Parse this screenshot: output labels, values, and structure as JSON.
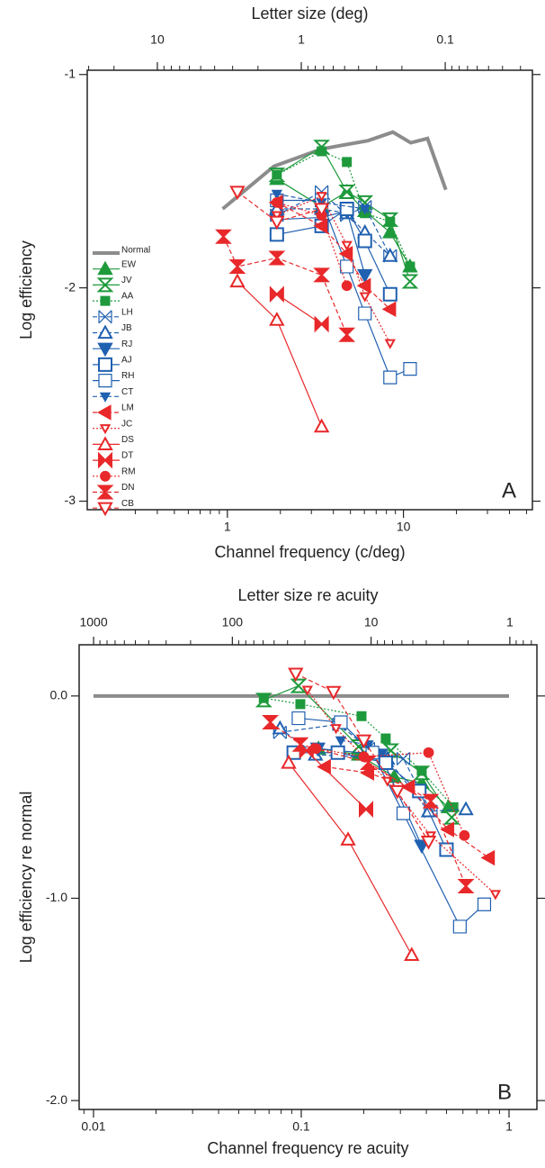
{
  "chart_data": [
    {
      "type": "line",
      "panel_label": "A",
      "x2label": "Letter size (deg)",
      "xlabel": "Channel frequency (c/deg)",
      "ylabel": "Log efficiency",
      "xscale": "log",
      "x2scale": "log",
      "xlim": [
        0.16,
        54
      ],
      "xticks": [
        1,
        10
      ],
      "x2lim": [
        30.7,
        0.0248
      ],
      "x2ticks": [
        10,
        1,
        0.1
      ],
      "ylim": [
        -3.04,
        -0.98
      ],
      "yticks": [
        -1,
        -2,
        -3
      ],
      "legend": "left",
      "series": [
        {
          "name": "Normal",
          "color": "#8c8c8c",
          "marker": "none",
          "filled": false,
          "line_style": "solid",
          "x": [
            0.94,
            1.84,
            3.4,
            4.6,
            6.3,
            8.7,
            11.0,
            13.7,
            17.4
          ],
          "values": [
            -1.63,
            -1.43,
            -1.35,
            -1.33,
            -1.31,
            -1.27,
            -1.32,
            -1.3,
            -1.54
          ]
        },
        {
          "name": "EW",
          "color": "#1e9a3c",
          "marker": "triangle-up",
          "filled": true,
          "line_style": "solid",
          "x": [
            1.91,
            3.43,
            4.77,
            6.04,
            8.4,
            10.9
          ],
          "values": [
            -1.49,
            -1.62,
            -1.55,
            -1.64,
            -1.74,
            -1.9
          ]
        },
        {
          "name": "JV",
          "color": "#1e9a3c",
          "marker": "hourglass",
          "filled": false,
          "line_style": "solid",
          "x": [
            1.91,
            3.43,
            4.77,
            6.04,
            8.4,
            10.9
          ],
          "values": [
            -1.47,
            -1.34,
            -1.55,
            -1.6,
            -1.68,
            -1.97
          ]
        },
        {
          "name": "AA",
          "color": "#1e9a3c",
          "marker": "square-small",
          "filled": true,
          "line_style": "dotted",
          "x": [
            1.91,
            3.43,
            4.77,
            6.04,
            8.4,
            10.9
          ],
          "values": [
            -1.47,
            -1.36,
            -1.41,
            -1.65,
            -1.69,
            -1.9
          ]
        },
        {
          "name": "LH",
          "color": "#2060b0",
          "marker": "xsquare",
          "filled": false,
          "line_style": "dashed",
          "x": [
            1.91,
            3.43,
            4.77,
            6.04,
            8.4
          ],
          "values": [
            -1.66,
            -1.55,
            -1.66,
            -1.62,
            -1.85
          ]
        },
        {
          "name": "JB",
          "color": "#2060b0",
          "marker": "triangle-up",
          "filled": false,
          "line_style": "dashed",
          "x": [
            1.91,
            3.43,
            4.77,
            6.04,
            8.4
          ],
          "values": [
            -1.63,
            -1.63,
            -1.65,
            -1.74,
            -1.85
          ]
        },
        {
          "name": "RJ",
          "color": "#2060b0",
          "marker": "triangle-down",
          "filled": true,
          "line_style": "solid",
          "x": [
            1.91,
            3.43,
            4.77,
            6.04
          ],
          "values": [
            -1.68,
            -1.67,
            -1.64,
            -1.94
          ]
        },
        {
          "name": "AJ",
          "color": "#2060b0",
          "marker": "square",
          "filled": false,
          "line_style": "solid",
          "x": [
            1.91,
            3.43,
            4.77,
            6.04,
            8.4
          ],
          "values": [
            -1.75,
            -1.71,
            -1.63,
            -1.78,
            -2.03
          ]
        },
        {
          "name": "RH",
          "color": "#2060b0",
          "marker": "square-thin",
          "filled": false,
          "line_style": "solid",
          "x": [
            1.91,
            3.43,
            4.77,
            6.04,
            8.4,
            10.9
          ],
          "values": [
            -1.59,
            -1.59,
            -1.9,
            -2.12,
            -2.42,
            -2.38
          ]
        },
        {
          "name": "CT",
          "color": "#2060b0",
          "marker": "triangle-down-small",
          "filled": true,
          "line_style": "dashed",
          "x": [
            1.91,
            3.43,
            6.04
          ],
          "values": [
            -1.56,
            -1.6,
            -1.63
          ]
        },
        {
          "name": "LM",
          "color": "#e8282a",
          "marker": "triangle-left",
          "filled": true,
          "line_style": "dashed",
          "x": [
            1.91,
            3.43,
            4.77,
            6.04,
            8.4
          ],
          "values": [
            -1.6,
            -1.71,
            -1.84,
            -1.99,
            -2.1
          ]
        },
        {
          "name": "JC",
          "color": "#e8282a",
          "marker": "triangle-down-small",
          "filled": false,
          "line_style": "dotted",
          "x": [
            1.91,
            3.43,
            4.77,
            6.04,
            8.4
          ],
          "values": [
            -1.66,
            -1.57,
            -1.8,
            -2.04,
            -2.26
          ]
        },
        {
          "name": "DS",
          "color": "#e8282a",
          "marker": "triangle-up",
          "filled": false,
          "line_style": "solid",
          "x": [
            1.14,
            1.91,
            3.43
          ],
          "values": [
            -1.97,
            -2.15,
            -2.65
          ]
        },
        {
          "name": "DT",
          "color": "#e8282a",
          "marker": "bowtie",
          "filled": true,
          "line_style": "solid",
          "x": [
            1.91,
            3.43
          ],
          "values": [
            -2.03,
            -2.17
          ]
        },
        {
          "name": "RM",
          "color": "#e8282a",
          "marker": "circle",
          "filled": true,
          "line_style": "dotted",
          "x": [
            1.91,
            3.43,
            4.77
          ],
          "values": [
            -1.6,
            -1.66,
            -1.99
          ]
        },
        {
          "name": "DN",
          "color": "#e8282a",
          "marker": "hourglass",
          "filled": true,
          "line_style": "dashed",
          "x": [
            0.95,
            1.14,
            1.91,
            3.43,
            4.77
          ],
          "values": [
            -1.76,
            -1.9,
            -1.86,
            -1.94,
            -2.22
          ]
        },
        {
          "name": "CB",
          "color": "#e8282a",
          "marker": "triangle-down",
          "filled": false,
          "line_style": "dashed",
          "x": [
            1.14,
            1.91,
            3.43
          ],
          "values": [
            -1.55,
            -1.69,
            -1.63
          ]
        }
      ]
    },
    {
      "type": "line",
      "panel_label": "B",
      "x2label": "Letter size re acuity",
      "xlabel": "Channel frequency re acuity",
      "ylabel": "Log efficiency  re normal",
      "xscale": "log",
      "x2scale": "log",
      "xlim": [
        0.00853,
        1.362
      ],
      "xticks": [
        0.01,
        0.1,
        1
      ],
      "x2lim": [
        1271,
        0.638
      ],
      "x2ticks": [
        1000,
        100,
        10,
        1
      ],
      "ylim": [
        -2.044,
        0.253
      ],
      "yticks": [
        {
          "value": 0,
          "label": "0.0"
        },
        {
          "value": -1,
          "label": "-1.0"
        },
        {
          "value": -2,
          "label": "-2.0"
        }
      ],
      "series": [
        {
          "color": "#8c8c8c",
          "marker": "none",
          "filled": false,
          "line_style": "solid",
          "x": [
            0.01,
            1
          ],
          "values": [
            0,
            0
          ]
        },
        {
          "color": "#1e9a3c",
          "marker": "triangle-up",
          "filled": true,
          "line_style": "solid",
          "x": [
            0.121,
            0.189,
            0.28,
            0.38,
            0.51
          ],
          "values": [
            -0.26,
            -0.29,
            -0.4,
            -0.43,
            -0.55
          ]
        },
        {
          "color": "#1e9a3c",
          "marker": "hourglass",
          "filled": false,
          "line_style": "solid",
          "x": [
            0.066,
            0.097,
            0.189,
            0.27,
            0.38,
            0.53
          ],
          "values": [
            -0.02,
            0.05,
            -0.25,
            -0.27,
            -0.38,
            -0.6
          ]
        },
        {
          "color": "#1e9a3c",
          "marker": "square-small",
          "filled": true,
          "line_style": "dotted",
          "x": [
            0.066,
            0.099,
            0.195,
            0.255,
            0.38,
            0.54
          ],
          "values": [
            -0.01,
            -0.04,
            -0.1,
            -0.21,
            -0.37,
            -0.55
          ]
        },
        {
          "color": "#2060b0",
          "marker": "xsquare",
          "filled": false,
          "line_style": "dashed",
          "x": [
            0.079,
            0.152,
            0.21,
            0.31,
            0.42
          ],
          "values": [
            -0.18,
            -0.14,
            -0.26,
            -0.31,
            -0.57
          ]
        },
        {
          "color": "#2060b0",
          "marker": "triangle-up",
          "filled": false,
          "line_style": "dashed",
          "x": [
            0.079,
            0.117,
            0.26,
            0.41,
            0.62
          ],
          "values": [
            -0.16,
            -0.29,
            -0.31,
            -0.57,
            -0.56
          ]
        },
        {
          "color": "#2060b0",
          "marker": "triangle-down",
          "filled": true,
          "line_style": "solid",
          "x": [
            0.12,
            0.24,
            0.38
          ],
          "values": [
            -0.26,
            -0.29,
            -0.74
          ]
        },
        {
          "color": "#2060b0",
          "marker": "square",
          "filled": false,
          "line_style": "solid",
          "x": [
            0.092,
            0.15,
            0.255,
            0.37,
            0.5
          ],
          "values": [
            -0.28,
            -0.28,
            -0.33,
            -0.47,
            -0.76
          ]
        },
        {
          "color": "#2060b0",
          "marker": "square-thin",
          "filled": false,
          "line_style": "solid",
          "x": [
            0.097,
            0.155,
            0.22,
            0.31,
            0.58,
            0.76
          ],
          "values": [
            -0.11,
            -0.13,
            -0.28,
            -0.58,
            -1.14,
            -1.03
          ]
        },
        {
          "color": "#2060b0",
          "marker": "triangle-down-small",
          "filled": true,
          "line_style": "dashed",
          "x": [
            0.155,
            0.21
          ],
          "values": [
            -0.22,
            -0.24
          ]
        },
        {
          "color": "#e8282a",
          "marker": "triangle-left",
          "filled": true,
          "line_style": "dashed",
          "x": [
            0.13,
            0.21,
            0.33,
            0.51,
            0.8
          ],
          "values": [
            -0.35,
            -0.38,
            -0.45,
            -0.66,
            -0.8
          ]
        },
        {
          "color": "#e8282a",
          "marker": "triangle-down-small",
          "filled": false,
          "line_style": "dotted",
          "x": [
            0.107,
            0.147,
            0.26,
            0.42,
            0.86
          ],
          "values": [
            0.03,
            -0.16,
            -0.42,
            -0.69,
            -0.98
          ]
        },
        {
          "color": "#e8282a",
          "marker": "triangle-up",
          "filled": false,
          "line_style": "solid",
          "x": [
            0.087,
            0.168,
            0.34
          ],
          "values": [
            -0.33,
            -0.71,
            -1.28
          ]
        },
        {
          "color": "#e8282a",
          "marker": "bowtie",
          "filled": true,
          "line_style": "solid",
          "x": [
            0.106,
            0.205
          ],
          "values": [
            -0.27,
            -0.56
          ]
        },
        {
          "color": "#e8282a",
          "marker": "circle",
          "filled": true,
          "line_style": "dotted",
          "x": [
            0.118,
            0.2,
            0.41,
            0.61
          ],
          "values": [
            -0.26,
            -0.3,
            -0.28,
            -0.69
          ]
        },
        {
          "color": "#e8282a",
          "marker": "hourglass",
          "filled": true,
          "line_style": "dashed",
          "x": [
            0.071,
            0.099,
            0.21,
            0.42,
            0.62
          ],
          "values": [
            -0.13,
            -0.24,
            -0.33,
            -0.52,
            -0.94
          ]
        },
        {
          "color": "#e8282a",
          "marker": "triangle-down",
          "filled": false,
          "line_style": "dashed",
          "x": [
            0.094,
            0.143,
            0.2,
            0.29,
            0.41
          ],
          "values": [
            0.11,
            0.02,
            -0.22,
            -0.47,
            -0.72
          ]
        }
      ]
    }
  ]
}
